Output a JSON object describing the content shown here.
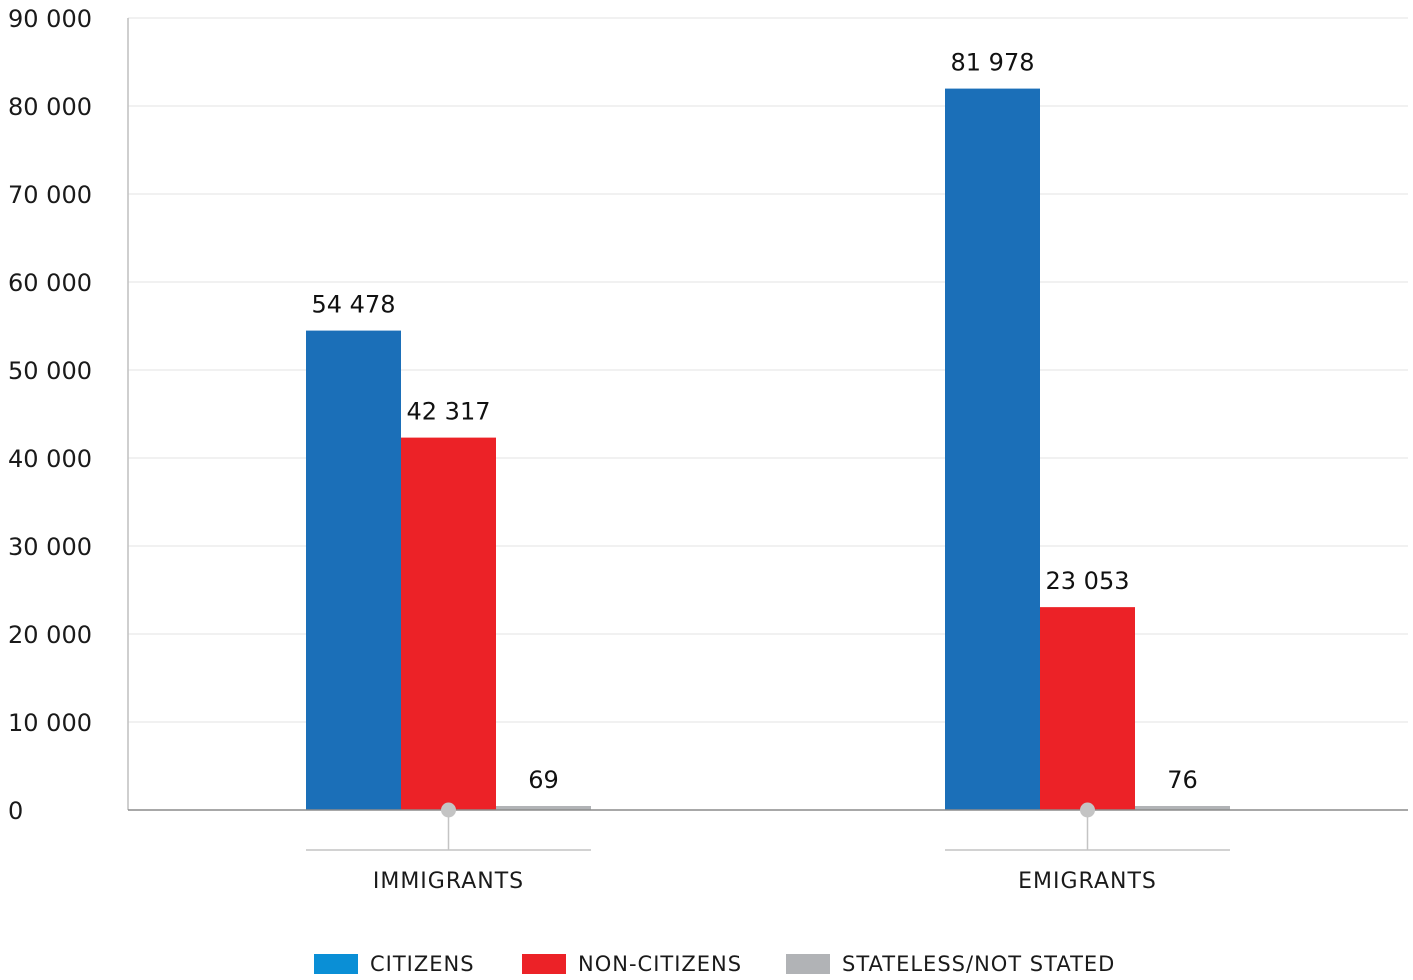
{
  "chart_data": {
    "type": "bar",
    "categories": [
      "IMMIGRANTS",
      "EMIGRANTS"
    ],
    "series": [
      {
        "name": "CITIZENS",
        "values": [
          54478,
          81978
        ],
        "labels": [
          "54 478",
          "81 978"
        ],
        "color": "#1b6fb8"
      },
      {
        "name": "NON-CITIZENS",
        "values": [
          42317,
          23053
        ],
        "labels": [
          "42 317",
          "23 053"
        ],
        "color": "#ec2227"
      },
      {
        "name": "STATELESS/NOT STATED",
        "values": [
          69,
          76
        ],
        "labels": [
          "69",
          "76"
        ],
        "color": "#b1b3b6"
      }
    ],
    "legend_swatch_colors": [
      "#0a8fd6",
      "#ec2227",
      "#b1b3b6"
    ],
    "y_ticks": [
      {
        "value": 0,
        "label": "0"
      },
      {
        "value": 10000,
        "label": "10 000"
      },
      {
        "value": 20000,
        "label": "20 000"
      },
      {
        "value": 30000,
        "label": "30 000"
      },
      {
        "value": 40000,
        "label": "40 000"
      },
      {
        "value": 50000,
        "label": "50 000"
      },
      {
        "value": 60000,
        "label": "60 000"
      },
      {
        "value": 70000,
        "label": "70 000"
      },
      {
        "value": 80000,
        "label": "80 000"
      },
      {
        "value": 90000,
        "label": "90 000"
      }
    ],
    "ylim": [
      0,
      90000
    ],
    "grid": true,
    "legend_position": "bottom",
    "title": "",
    "xlabel": "",
    "ylabel": ""
  }
}
